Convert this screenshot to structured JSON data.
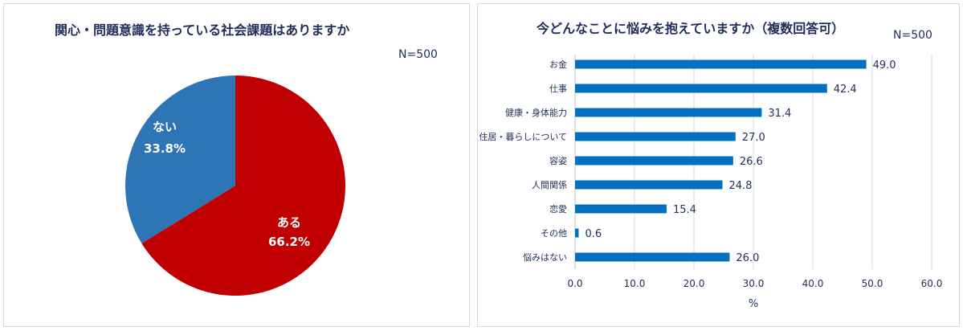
{
  "chart_data": [
    {
      "type": "pie",
      "title": "関心・問題意識を持っている社会課題はありますか",
      "note": "N=500",
      "slices": [
        {
          "label": "ある",
          "value": 66.2,
          "display": "66.2%",
          "color": "#c00000"
        },
        {
          "label": "ない",
          "value": 33.8,
          "display": "33.8%",
          "color": "#2e75b6"
        }
      ]
    },
    {
      "type": "bar",
      "orientation": "horizontal",
      "title": "今どんなことに悩みを抱えていますか（複数回答可）",
      "note": "N=500",
      "categories": [
        "お金",
        "仕事",
        "健康・身体能力",
        "住居・暮らしについて",
        "容姿",
        "人間関係",
        "恋愛",
        "その他",
        "悩みはない"
      ],
      "values": [
        49.0,
        42.4,
        31.4,
        27.0,
        26.6,
        24.8,
        15.4,
        0.6,
        26.0
      ],
      "value_labels": [
        "49.0",
        "42.4",
        "31.4",
        "27.0",
        "26.6",
        "24.8",
        "15.4",
        "0.6",
        "26.0"
      ],
      "xlim": [
        0,
        60
      ],
      "xticks": [
        "0.0",
        "10.0",
        "20.0",
        "30.0",
        "40.0",
        "50.0",
        "60.0"
      ],
      "xlabel": "%",
      "grid": true,
      "color": "#0070c0"
    }
  ]
}
